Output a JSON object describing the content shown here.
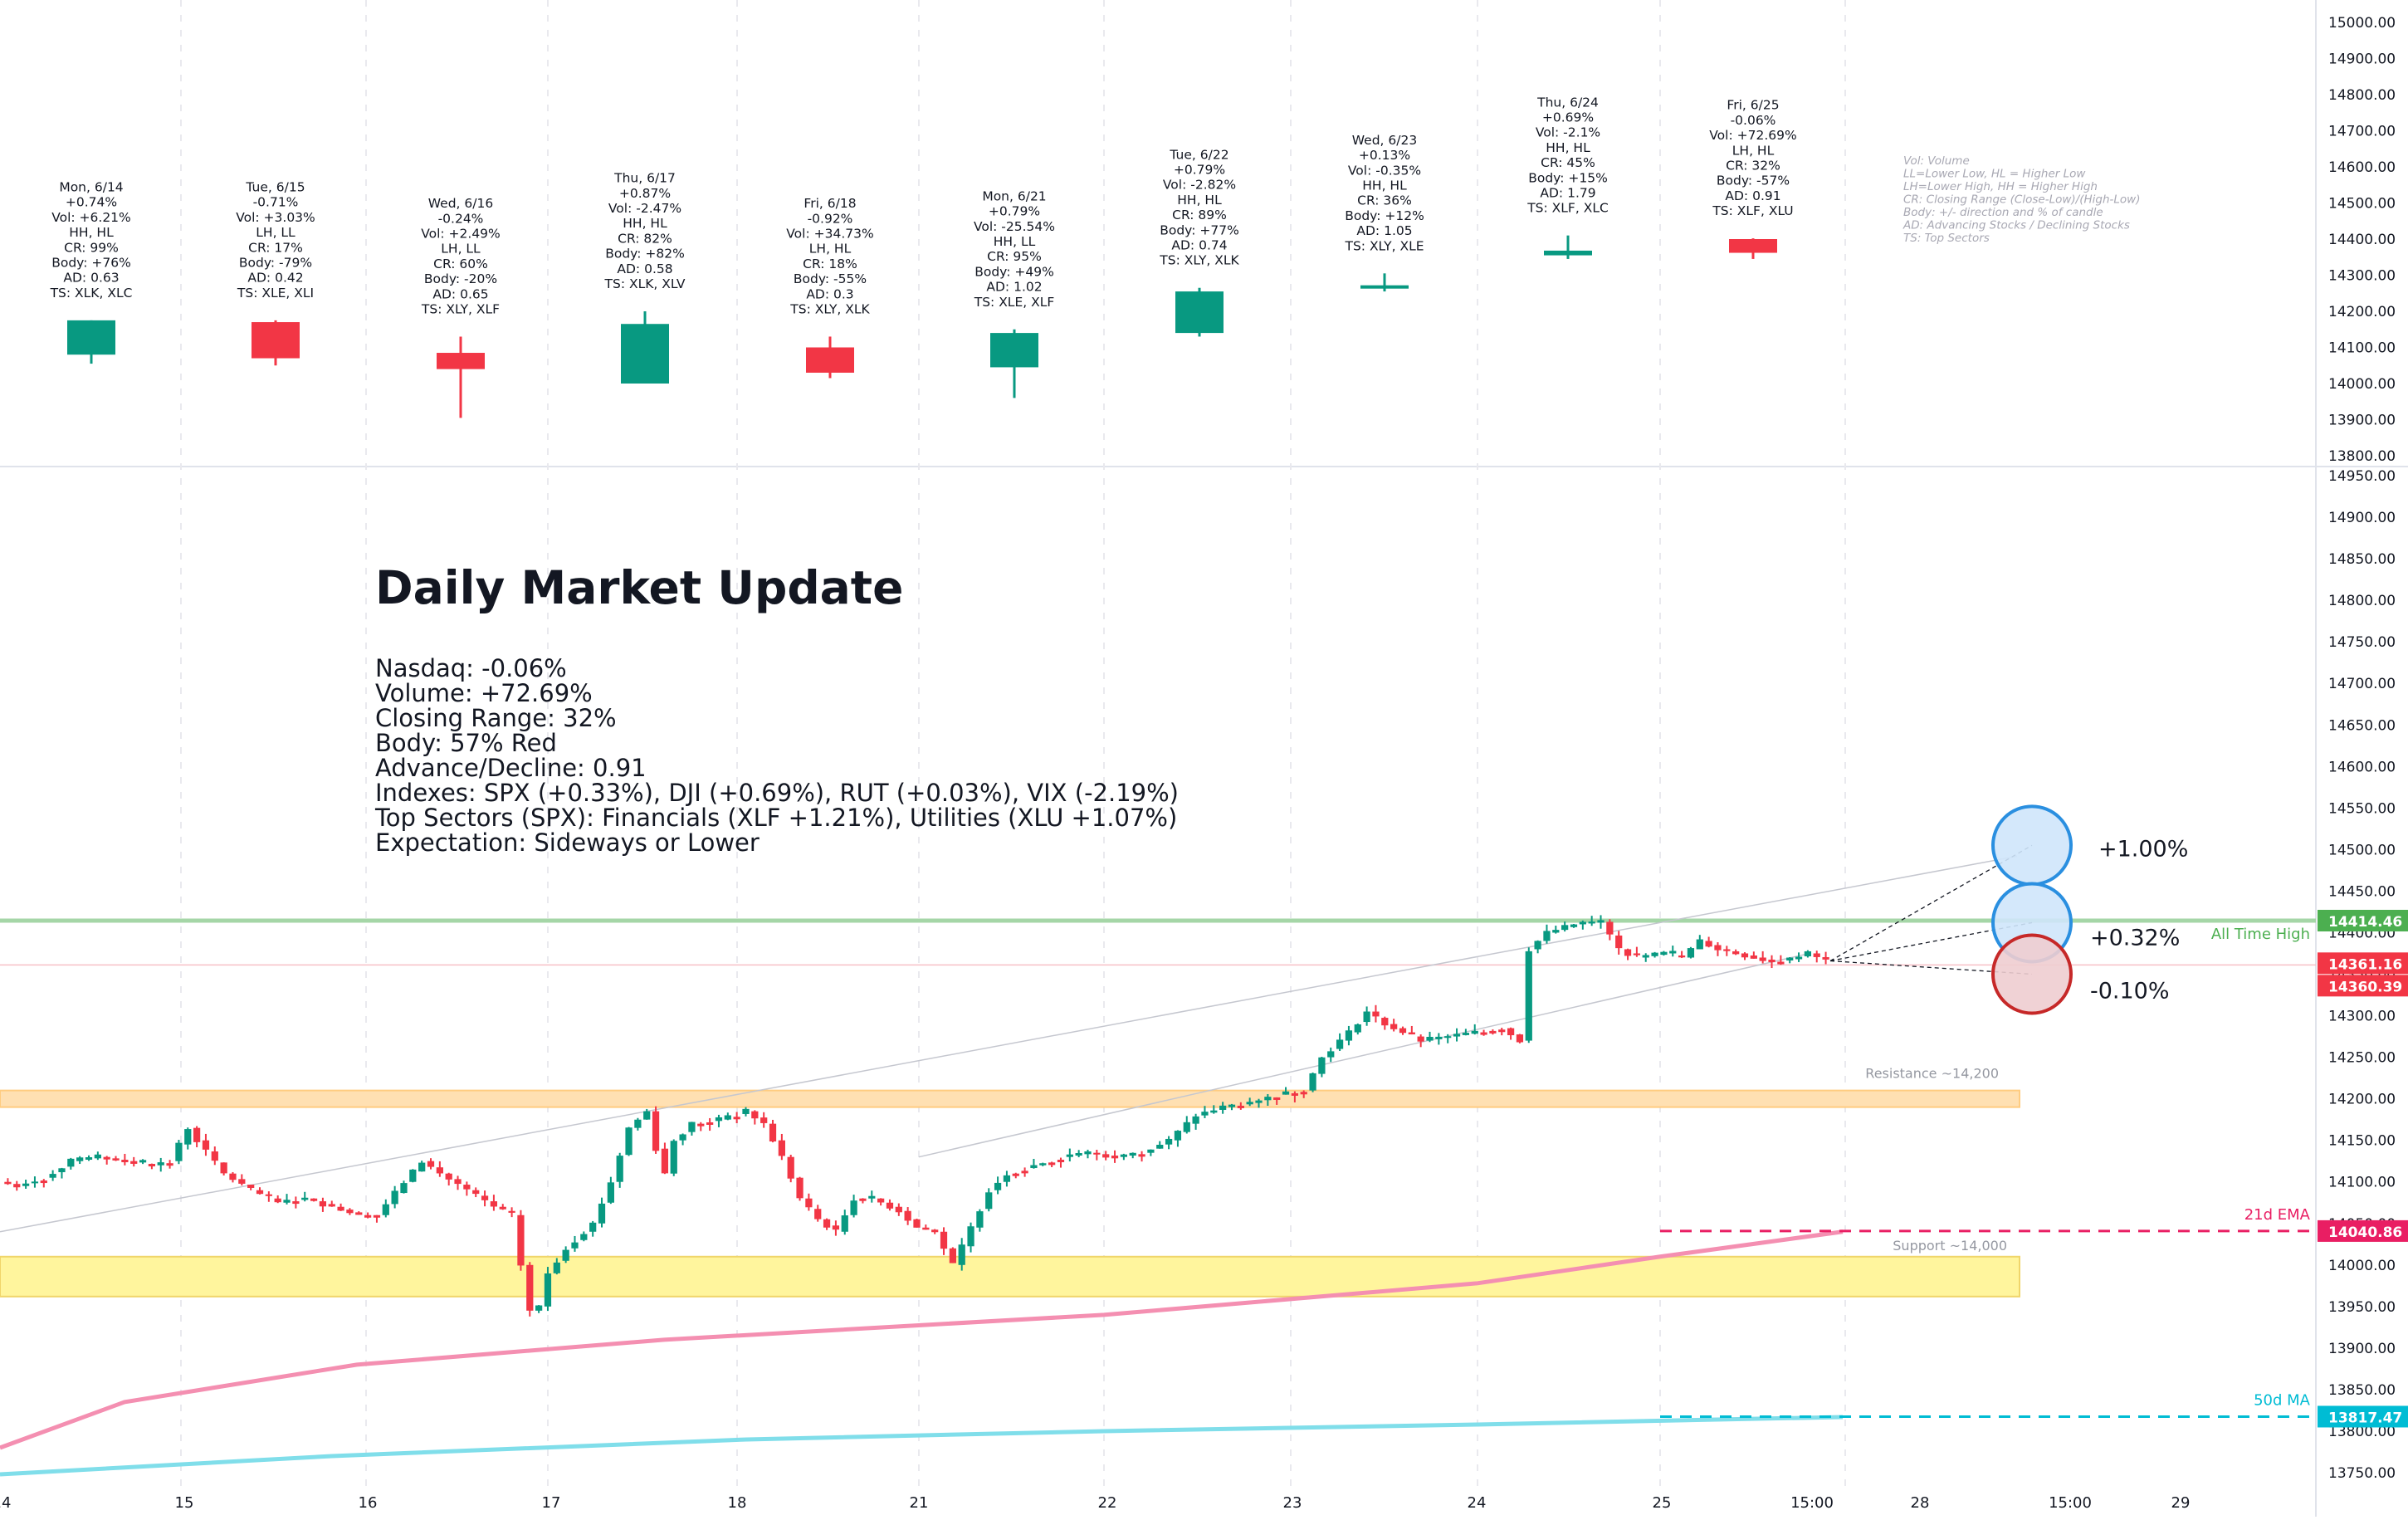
{
  "summary": {
    "title": "Daily Market Update",
    "lines": [
      "Nasdaq: -0.06%",
      "Volume: +72.69%",
      "Closing Range: 32%",
      "Body: 57% Red",
      "Advance/Decline: 0.91",
      "Indexes: SPX (+0.33%), DJI (+0.69%), RUT (+0.03%), VIX (-2.19%)",
      "Top Sectors (SPX): Financials (XLF +1.21%), Utilities (XLU +1.07%)",
      "Expectation: Sideways or Lower"
    ]
  },
  "legend": [
    "Vol: Volume",
    "LL=Lower Low, HL = Higher Low",
    "LH=Lower High, HH = Higher High",
    "CR: Closing Range (Close-Low)/(High-Low)",
    "Body: +/- direction and % of candle",
    "AD: Advancing Stocks / Declining Stocks",
    "TS: Top Sectors"
  ],
  "colors": {
    "up": "#089981",
    "down": "#f23645",
    "ath": "#a5d6a7",
    "ema": "#f48fb1",
    "ma50": "#80deea",
    "resistance": "#ffe0b2",
    "support": "#fff59d",
    "ema_badge": "#e91e63",
    "ma_badge": "#00bcd4"
  },
  "chart_data": [
    {
      "type": "candlestick",
      "panel": "daily",
      "ylim": [
        13800,
        15000
      ],
      "yticks": [
        "15000.00",
        "14900.00",
        "14800.00",
        "14700.00",
        "14600.00",
        "14500.00",
        "14400.00",
        "14300.00",
        "14200.00",
        "14100.00",
        "14000.00",
        "13900.00",
        "13800.00"
      ],
      "candles": [
        {
          "label": [
            "Mon, 6/14",
            "+0.74%",
            "Vol: +6.21%",
            "HH, HL",
            "CR: 99%",
            "Body: +76%",
            "AD: 0.63",
            "TS: XLK, XLC"
          ],
          "open": 14080,
          "high": 14175,
          "low": 14055,
          "close": 14175
        },
        {
          "label": [
            "Tue, 6/15",
            "-0.71%",
            "Vol: +3.03%",
            "LH, LL",
            "CR: 17%",
            "Body: -79%",
            "AD: 0.42",
            "TS: XLE, XLI"
          ],
          "open": 14170,
          "high": 14175,
          "low": 14050,
          "close": 14070
        },
        {
          "label": [
            "Wed, 6/16",
            "-0.24%",
            "Vol: +2.49%",
            "LH, LL",
            "CR: 60%",
            "Body: -20%",
            "AD: 0.65",
            "TS: XLY, XLF"
          ],
          "open": 14085,
          "high": 14130,
          "low": 13905,
          "close": 14040
        },
        {
          "label": [
            "Thu, 6/17",
            "+0.87%",
            "Vol: -2.47%",
            "HH, HL",
            "CR: 82%",
            "Body: +82%",
            "AD: 0.58",
            "TS: XLK, XLV"
          ],
          "open": 14000,
          "high": 14200,
          "low": 14000,
          "close": 14165
        },
        {
          "label": [
            "Fri, 6/18",
            "-0.92%",
            "Vol: +34.73%",
            "LH, HL",
            "CR: 18%",
            "Body: -55%",
            "AD: 0.3",
            "TS: XLY, XLK"
          ],
          "open": 14100,
          "high": 14130,
          "low": 14015,
          "close": 14030
        },
        {
          "label": [
            "Mon, 6/21",
            "+0.79%",
            "Vol: -25.54%",
            "HH, LL",
            "CR: 95%",
            "Body: +49%",
            "AD: 1.02",
            "TS: XLE, XLF"
          ],
          "open": 14045,
          "high": 14150,
          "low": 13960,
          "close": 14140
        },
        {
          "label": [
            "Tue, 6/22",
            "+0.79%",
            "Vol: -2.82%",
            "HH, HL",
            "CR: 89%",
            "Body: +77%",
            "AD: 0.74",
            "TS: XLY, XLK"
          ],
          "open": 14140,
          "high": 14265,
          "low": 14130,
          "close": 14255
        },
        {
          "label": [
            "Wed, 6/23",
            "+0.13%",
            "Vol: -0.35%",
            "HH, HL",
            "CR: 36%",
            "Body: +12%",
            "AD: 1.05",
            "TS: XLY, XLE"
          ],
          "open": 14265,
          "high": 14305,
          "low": 14255,
          "close": 14272
        },
        {
          "label": [
            "Thu, 6/24",
            "+0.69%",
            "Vol: -2.1%",
            "HH, HL",
            "CR: 45%",
            "Body: +15%",
            "AD: 1.79",
            "TS: XLF, XLC"
          ],
          "open": 14355,
          "high": 14410,
          "low": 14345,
          "close": 14368
        },
        {
          "label": [
            "Fri, 6/25",
            "-0.06%",
            "Vol: +72.69%",
            "LH, HL",
            "CR: 32%",
            "Body: -57%",
            "AD: 0.91",
            "TS: XLF, XLU"
          ],
          "open": 14400,
          "high": 14402,
          "low": 14345,
          "close": 14362
        }
      ]
    },
    {
      "type": "candlestick",
      "panel": "intraday",
      "ylim": [
        13750,
        14950
      ],
      "yticks": [
        "14950.00",
        "14900.00",
        "14850.00",
        "14800.00",
        "14750.00",
        "14700.00",
        "14650.00",
        "14600.00",
        "14550.00",
        "14500.00",
        "14450.00",
        "14400.00",
        "14350.00",
        "14300.00",
        "14250.00",
        "14200.00",
        "14150.00",
        "14100.00",
        "14050.00",
        "14000.00",
        "13950.00",
        "13900.00",
        "13850.00",
        "13800.00",
        "13750.00"
      ],
      "xticks": [
        "14",
        "15",
        "16",
        "17",
        "18",
        "21",
        "22",
        "23",
        "24",
        "25",
        "15:00",
        "28",
        "15:00",
        "29"
      ],
      "anchors": [
        [
          0,
          14100
        ],
        [
          2,
          14095
        ],
        [
          5,
          14105
        ],
        [
          8,
          14125
        ],
        [
          11,
          14130
        ],
        [
          14,
          14125
        ],
        [
          17,
          14120
        ],
        [
          19,
          14125
        ],
        [
          21,
          14165
        ],
        [
          22,
          14150
        ],
        [
          25,
          14110
        ],
        [
          28,
          14090
        ],
        [
          31,
          14075
        ],
        [
          34,
          14080
        ],
        [
          37,
          14070
        ],
        [
          40,
          14060
        ],
        [
          42,
          14060
        ],
        [
          45,
          14100
        ],
        [
          47,
          14125
        ],
        [
          49,
          14110
        ],
        [
          52,
          14090
        ],
        [
          55,
          14070
        ],
        [
          57,
          14060
        ],
        [
          58,
          14000
        ],
        [
          59,
          13945
        ],
        [
          60,
          13950
        ],
        [
          61,
          13990
        ],
        [
          63,
          14020
        ],
        [
          66,
          14050
        ],
        [
          68,
          14100
        ],
        [
          70,
          14165
        ],
        [
          72,
          14185
        ],
        [
          73,
          14140
        ],
        [
          74,
          14110
        ],
        [
          75,
          14150
        ],
        [
          77,
          14170
        ],
        [
          80,
          14175
        ],
        [
          83,
          14185
        ],
        [
          85,
          14170
        ],
        [
          87,
          14130
        ],
        [
          89,
          14080
        ],
        [
          91,
          14055
        ],
        [
          93,
          14040
        ],
        [
          95,
          14080
        ],
        [
          97,
          14080
        ],
        [
          100,
          14065
        ],
        [
          102,
          14045
        ],
        [
          104,
          14040
        ],
        [
          106,
          14000
        ],
        [
          108,
          14045
        ],
        [
          110,
          14090
        ],
        [
          112,
          14110
        ],
        [
          115,
          14120
        ],
        [
          118,
          14130
        ],
        [
          121,
          14135
        ],
        [
          124,
          14130
        ],
        [
          127,
          14135
        ],
        [
          130,
          14150
        ],
        [
          133,
          14180
        ],
        [
          136,
          14190
        ],
        [
          139,
          14195
        ],
        [
          142,
          14205
        ],
        [
          145,
          14210
        ],
        [
          147,
          14250
        ],
        [
          150,
          14280
        ],
        [
          152,
          14305
        ],
        [
          154,
          14290
        ],
        [
          156,
          14280
        ],
        [
          158,
          14270
        ],
        [
          161,
          14275
        ],
        [
          164,
          14280
        ],
        [
          167,
          14285
        ],
        [
          169,
          14270
        ],
        [
          170,
          14380
        ],
        [
          172,
          14400
        ],
        [
          175,
          14410
        ],
        [
          178,
          14413
        ],
        [
          180,
          14380
        ],
        [
          182,
          14370
        ],
        [
          185,
          14375
        ],
        [
          187,
          14370
        ],
        [
          189,
          14390
        ],
        [
          191,
          14380
        ],
        [
          193,
          14375
        ],
        [
          195,
          14370
        ],
        [
          197,
          14365
        ],
        [
          199,
          14368
        ],
        [
          201,
          14375
        ],
        [
          203,
          14366
        ]
      ],
      "current_price": "14361.16",
      "prev_close": "14360.39",
      "levels": [
        {
          "name": "All Time High",
          "value": 14414.46,
          "badge": "14414.46"
        },
        {
          "name": "Resistance ~14,200",
          "value": 14200
        },
        {
          "name": "Support ~14,000",
          "value": 14000
        },
        {
          "name": "21d EMA",
          "value": 14040.86,
          "badge": "14040.86"
        },
        {
          "name": "50d MA",
          "value": 13817.47,
          "badge": "13817.47"
        }
      ],
      "scenarios": [
        "+1.00%",
        "+0.32%",
        "-0.10%"
      ]
    }
  ]
}
